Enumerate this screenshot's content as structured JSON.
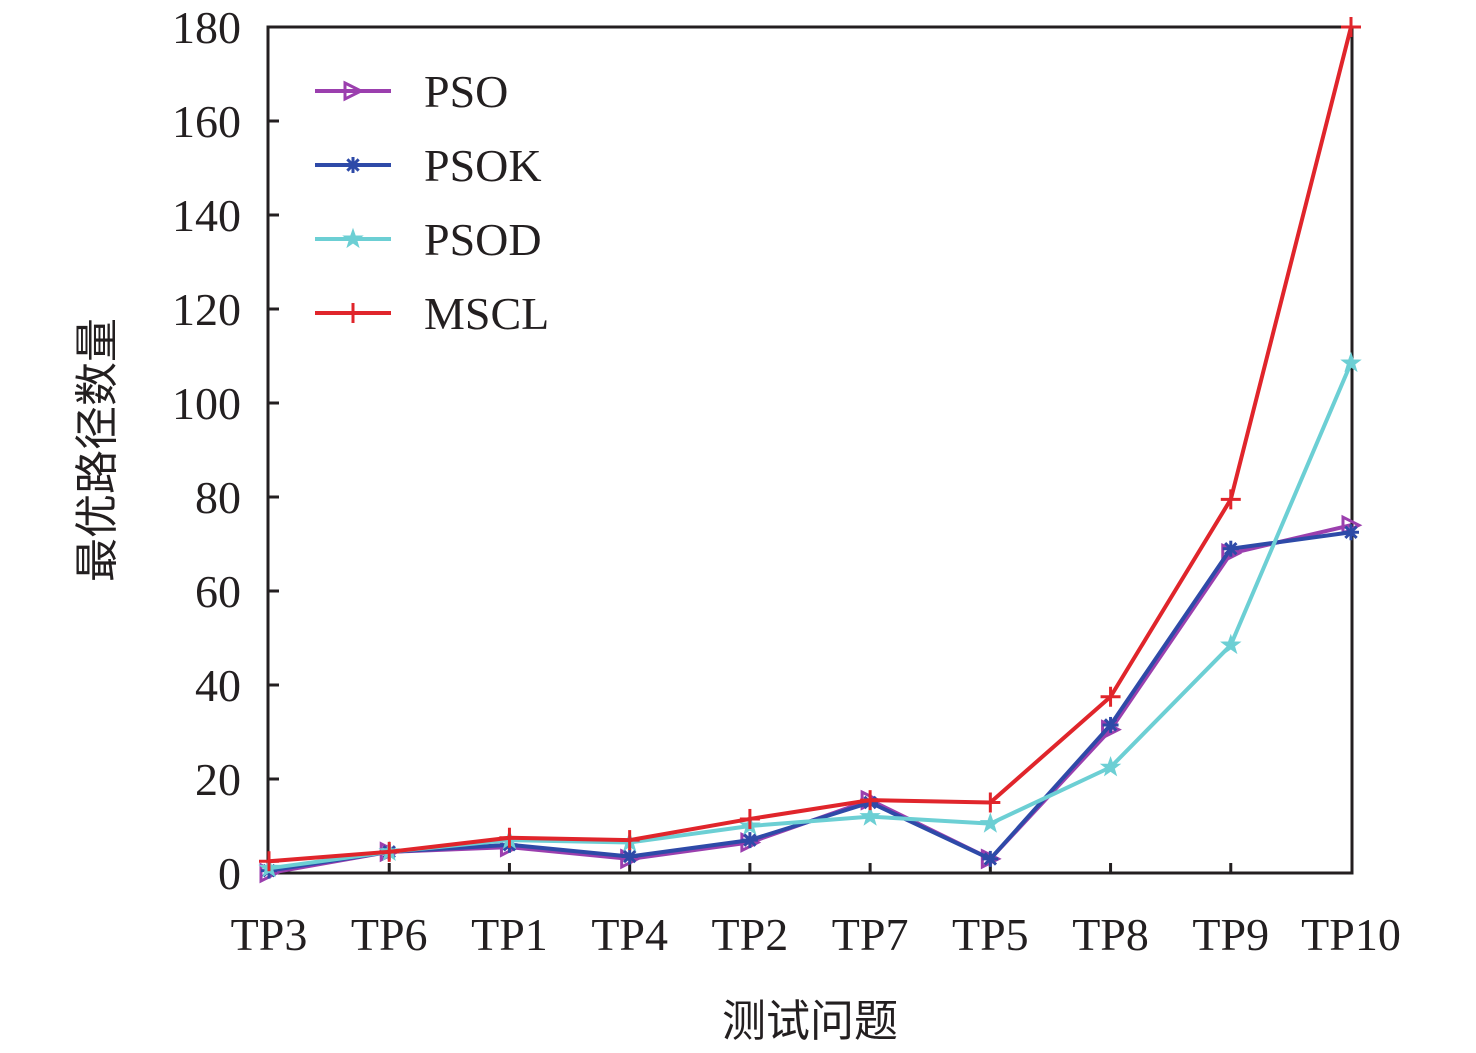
{
  "chart_data": {
    "type": "line",
    "title": "",
    "xlabel": "测试问题",
    "ylabel": "最优路径数量",
    "categories": [
      "TP3",
      "TP6",
      "TP1",
      "TP4",
      "TP2",
      "TP7",
      "TP5",
      "TP8",
      "TP9",
      "TP10"
    ],
    "ylim": [
      0,
      180
    ],
    "yticks": [
      0,
      20,
      40,
      60,
      80,
      100,
      120,
      140,
      160,
      180
    ],
    "grid": false,
    "legend_position": "top-left",
    "series": [
      {
        "name": "PSO",
        "color": "#9b3fae",
        "marker": "triangle-right",
        "values": [
          0,
          4.5,
          5.5,
          3,
          6.5,
          15.5,
          3,
          30.5,
          68,
          74
        ]
      },
      {
        "name": "PSOK",
        "color": "#2e4aa8",
        "marker": "asterisk",
        "values": [
          0.5,
          4.5,
          6,
          3.5,
          7,
          15,
          3,
          31.5,
          69,
          72.5
        ]
      },
      {
        "name": "PSOD",
        "color": "#6ccfd4",
        "marker": "star",
        "values": [
          1,
          4.5,
          7,
          6.5,
          10,
          12,
          10.5,
          22.5,
          48.5,
          108.5
        ]
      },
      {
        "name": "MSCL",
        "color": "#e0252b",
        "marker": "plus",
        "values": [
          2.5,
          4.5,
          7.5,
          7,
          11.5,
          15.5,
          15,
          37.5,
          79.5,
          180
        ]
      }
    ]
  }
}
